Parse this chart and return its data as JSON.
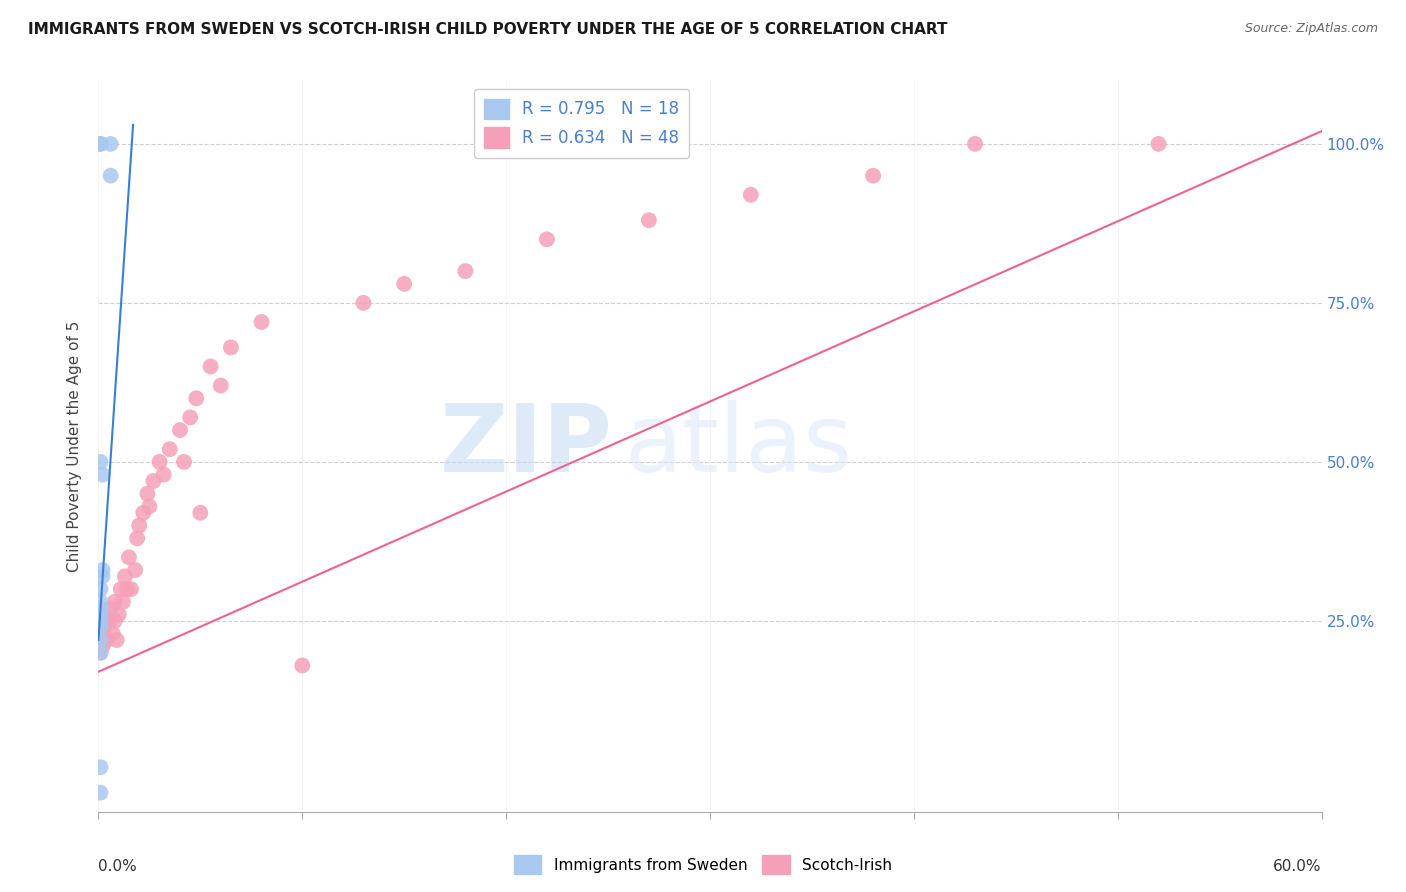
{
  "title": "IMMIGRANTS FROM SWEDEN VS SCOTCH-IRISH CHILD POVERTY UNDER THE AGE OF 5 CORRELATION CHART",
  "source": "Source: ZipAtlas.com",
  "ylabel": "Child Poverty Under the Age of 5",
  "xlim": [
    0.0,
    0.6
  ],
  "ylim": [
    -0.05,
    1.1
  ],
  "watermark_zip": "ZIP",
  "watermark_atlas": "atlas",
  "sweden_R": 0.795,
  "sweden_N": 18,
  "scotch_R": 0.634,
  "scotch_N": 48,
  "sweden_color": "#a8c8f0",
  "scotch_color": "#f5a0b8",
  "sweden_line_color": "#3a7fd5",
  "scotch_line_color": "#f06090",
  "right_axis_color": "#4a7fd0",
  "legend_text_color": "#4a7fd0",
  "sweden_x": [
    0.001,
    0.001,
    0.001,
    0.001,
    0.001,
    0.001,
    0.001,
    0.001,
    0.001,
    0.001,
    0.002,
    0.002,
    0.002,
    0.006,
    0.006,
    0.001,
    0.001,
    0.001
  ],
  "sweden_y": [
    -0.02,
    0.02,
    0.2,
    0.22,
    0.24,
    0.25,
    0.26,
    0.27,
    0.28,
    0.3,
    0.32,
    0.33,
    0.48,
    0.95,
    1.0,
    1.0,
    1.0,
    0.5
  ],
  "scotch_x": [
    0.001,
    0.001,
    0.002,
    0.003,
    0.003,
    0.004,
    0.005,
    0.006,
    0.007,
    0.008,
    0.008,
    0.009,
    0.01,
    0.011,
    0.012,
    0.013,
    0.014,
    0.015,
    0.016,
    0.018,
    0.019,
    0.02,
    0.022,
    0.024,
    0.025,
    0.027,
    0.03,
    0.032,
    0.035,
    0.04,
    0.042,
    0.045,
    0.048,
    0.05,
    0.055,
    0.06,
    0.065,
    0.08,
    0.1,
    0.13,
    0.15,
    0.18,
    0.22,
    0.27,
    0.32,
    0.38,
    0.43,
    0.52
  ],
  "scotch_y": [
    0.2,
    0.23,
    0.21,
    0.24,
    0.26,
    0.22,
    0.25,
    0.27,
    0.23,
    0.25,
    0.28,
    0.22,
    0.26,
    0.3,
    0.28,
    0.32,
    0.3,
    0.35,
    0.3,
    0.33,
    0.38,
    0.4,
    0.42,
    0.45,
    0.43,
    0.47,
    0.5,
    0.48,
    0.52,
    0.55,
    0.5,
    0.57,
    0.6,
    0.42,
    0.65,
    0.62,
    0.68,
    0.72,
    0.18,
    0.75,
    0.78,
    0.8,
    0.85,
    0.88,
    0.92,
    0.95,
    1.0,
    1.0
  ],
  "sweden_line_x0": 0.0,
  "sweden_line_x1": 0.017,
  "sweden_line_y0": 0.22,
  "sweden_line_y1": 1.03,
  "scotch_line_x0": 0.0,
  "scotch_line_x1": 0.6,
  "scotch_line_y0": 0.17,
  "scotch_line_y1": 1.02,
  "xticks": [
    0.0,
    0.1,
    0.2,
    0.3,
    0.4,
    0.5,
    0.6
  ],
  "yticks": [
    0.0,
    0.25,
    0.5,
    0.75,
    1.0
  ],
  "yticklabels_right": [
    "",
    "25.0%",
    "50.0%",
    "75.0%",
    "100.0%"
  ]
}
